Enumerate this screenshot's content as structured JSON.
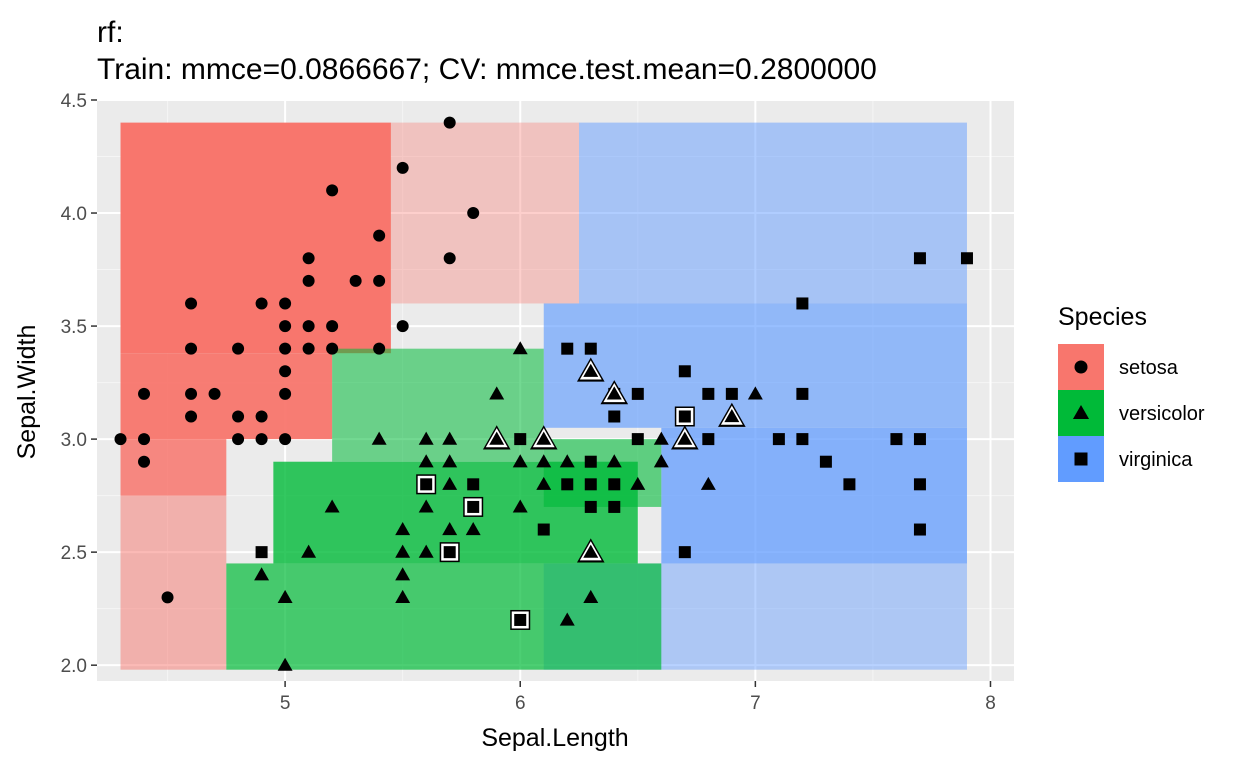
{
  "chart_data": {
    "type": "scatter",
    "title": "rf:",
    "subtitle": "Train: mmce=0.0866667; CV: mmce.test.mean=0.2800000",
    "xlabel": "Sepal.Length",
    "ylabel": "Sepal.Width",
    "xlim": [
      4.2,
      8.1
    ],
    "ylim": [
      1.93,
      4.5
    ],
    "x_ticks": [
      "5",
      "6",
      "7",
      "8"
    ],
    "x_tick_values": [
      5,
      6,
      7,
      8
    ],
    "y_ticks": [
      "2.0",
      "2.5",
      "3.0",
      "3.5",
      "4.0",
      "4.5"
    ],
    "y_tick_values": [
      2.0,
      2.5,
      3.0,
      3.5,
      4.0,
      4.5
    ],
    "grid": true,
    "legend": {
      "title": "Species",
      "position": "right",
      "entries": [
        {
          "label": "setosa",
          "color": "#F8766D",
          "shape": "circle"
        },
        {
          "label": "versicolor",
          "color": "#00BA38",
          "shape": "triangle"
        },
        {
          "label": "virginica",
          "color": "#619CFF",
          "shape": "square"
        }
      ]
    },
    "background_regions": [
      {
        "class": "setosa",
        "x": [
          4.3,
          5.45
        ],
        "y": [
          3.38,
          4.4
        ],
        "alpha": 1.0
      },
      {
        "class": "setosa",
        "x": [
          4.3,
          5.2
        ],
        "y": [
          3.0,
          3.38
        ],
        "alpha": 0.95
      },
      {
        "class": "setosa",
        "x": [
          4.3,
          4.75
        ],
        "y": [
          2.75,
          3.0
        ],
        "alpha": 0.85
      },
      {
        "class": "setosa",
        "x": [
          4.3,
          4.75
        ],
        "y": [
          1.98,
          2.75
        ],
        "alpha": 0.5
      },
      {
        "class": "setosa",
        "x": [
          5.45,
          6.25
        ],
        "y": [
          3.6,
          4.4
        ],
        "alpha": 0.35
      },
      {
        "class": "virginica",
        "x": [
          6.25,
          7.9
        ],
        "y": [
          3.6,
          4.4
        ],
        "alpha": 0.5
      },
      {
        "class": "virginica",
        "x": [
          6.1,
          7.9
        ],
        "y": [
          3.05,
          3.6
        ],
        "alpha": 0.65
      },
      {
        "class": "virginica",
        "x": [
          6.6,
          7.9
        ],
        "y": [
          2.45,
          3.05
        ],
        "alpha": 0.75
      },
      {
        "class": "virginica",
        "x": [
          6.1,
          7.9
        ],
        "y": [
          1.98,
          2.45
        ],
        "alpha": 0.45
      },
      {
        "class": "versicolor",
        "x": [
          5.2,
          6.1
        ],
        "y": [
          2.9,
          3.4
        ],
        "alpha": 0.55
      },
      {
        "class": "versicolor",
        "x": [
          4.95,
          6.5
        ],
        "y": [
          2.45,
          2.9
        ],
        "alpha": 0.8
      },
      {
        "class": "versicolor",
        "x": [
          4.75,
          6.6
        ],
        "y": [
          1.98,
          2.45
        ],
        "alpha": 0.7
      },
      {
        "class": "versicolor",
        "x": [
          6.1,
          6.6
        ],
        "y": [
          2.7,
          3.0
        ],
        "alpha": 0.6
      }
    ],
    "series": [
      {
        "name": "setosa",
        "shape": "circle",
        "points": [
          [
            5.7,
            4.4
          ],
          [
            5.5,
            4.2
          ],
          [
            5.2,
            4.1
          ],
          [
            5.8,
            4.0
          ],
          [
            5.4,
            3.9
          ],
          [
            5.1,
            3.8
          ],
          [
            5.7,
            3.8
          ],
          [
            5.1,
            3.7
          ],
          [
            5.3,
            3.7
          ],
          [
            5.4,
            3.7
          ],
          [
            4.6,
            3.6
          ],
          [
            4.9,
            3.6
          ],
          [
            5.0,
            3.6
          ],
          [
            5.1,
            3.5
          ],
          [
            5.0,
            3.5
          ],
          [
            5.2,
            3.5
          ],
          [
            5.5,
            3.5
          ],
          [
            4.6,
            3.4
          ],
          [
            4.8,
            3.4
          ],
          [
            5.0,
            3.4
          ],
          [
            5.1,
            3.4
          ],
          [
            5.2,
            3.4
          ],
          [
            5.4,
            3.4
          ],
          [
            5.0,
            3.3
          ],
          [
            4.4,
            3.2
          ],
          [
            4.6,
            3.2
          ],
          [
            4.7,
            3.2
          ],
          [
            5.0,
            3.2
          ],
          [
            4.6,
            3.1
          ],
          [
            4.8,
            3.1
          ],
          [
            4.9,
            3.1
          ],
          [
            4.3,
            3.0
          ],
          [
            4.4,
            3.0
          ],
          [
            4.8,
            3.0
          ],
          [
            4.9,
            3.0
          ],
          [
            5.0,
            3.0
          ],
          [
            4.4,
            2.9
          ],
          [
            4.5,
            2.3
          ]
        ]
      },
      {
        "name": "versicolor",
        "shape": "triangle",
        "points": [
          [
            6.0,
            3.4
          ],
          [
            5.9,
            3.2
          ],
          [
            7.0,
            3.2
          ],
          [
            6.3,
            3.3
          ],
          [
            6.4,
            3.2
          ],
          [
            6.9,
            3.1
          ],
          [
            6.7,
            3.1
          ],
          [
            5.9,
            3.0
          ],
          [
            6.1,
            3.0
          ],
          [
            6.7,
            3.0
          ],
          [
            6.6,
            3.0
          ],
          [
            5.4,
            3.0
          ],
          [
            5.6,
            3.0
          ],
          [
            5.7,
            3.0
          ],
          [
            5.6,
            2.9
          ],
          [
            5.7,
            2.9
          ],
          [
            6.0,
            2.9
          ],
          [
            6.1,
            2.9
          ],
          [
            6.2,
            2.9
          ],
          [
            6.4,
            2.9
          ],
          [
            6.6,
            2.9
          ],
          [
            5.7,
            2.8
          ],
          [
            6.1,
            2.8
          ],
          [
            6.5,
            2.8
          ],
          [
            6.8,
            2.8
          ],
          [
            5.6,
            2.7
          ],
          [
            5.8,
            2.7
          ],
          [
            6.0,
            2.7
          ],
          [
            5.2,
            2.7
          ],
          [
            5.5,
            2.6
          ],
          [
            5.7,
            2.6
          ],
          [
            5.8,
            2.6
          ],
          [
            5.1,
            2.5
          ],
          [
            5.5,
            2.5
          ],
          [
            5.6,
            2.5
          ],
          [
            6.3,
            2.5
          ],
          [
            4.9,
            2.4
          ],
          [
            5.5,
            2.4
          ],
          [
            5.0,
            2.3
          ],
          [
            5.5,
            2.3
          ],
          [
            6.3,
            2.3
          ],
          [
            6.2,
            2.2
          ],
          [
            5.0,
            2.0
          ]
        ]
      },
      {
        "name": "virginica",
        "shape": "square",
        "points": [
          [
            7.7,
            3.8
          ],
          [
            7.9,
            3.8
          ],
          [
            7.2,
            3.6
          ],
          [
            6.2,
            3.4
          ],
          [
            6.3,
            3.4
          ],
          [
            6.7,
            3.3
          ],
          [
            6.4,
            3.2
          ],
          [
            6.5,
            3.2
          ],
          [
            6.8,
            3.2
          ],
          [
            6.9,
            3.2
          ],
          [
            7.2,
            3.2
          ],
          [
            6.4,
            3.1
          ],
          [
            6.7,
            3.1
          ],
          [
            6.0,
            3.0
          ],
          [
            6.5,
            3.0
          ],
          [
            6.8,
            3.0
          ],
          [
            7.1,
            3.0
          ],
          [
            7.2,
            3.0
          ],
          [
            7.6,
            3.0
          ],
          [
            7.7,
            3.0
          ],
          [
            6.3,
            2.9
          ],
          [
            7.3,
            2.9
          ],
          [
            5.6,
            2.8
          ],
          [
            5.8,
            2.8
          ],
          [
            6.2,
            2.8
          ],
          [
            6.3,
            2.8
          ],
          [
            6.4,
            2.8
          ],
          [
            7.4,
            2.8
          ],
          [
            7.7,
            2.8
          ],
          [
            5.8,
            2.7
          ],
          [
            6.3,
            2.7
          ],
          [
            6.4,
            2.7
          ],
          [
            7.7,
            2.6
          ],
          [
            6.1,
            2.6
          ],
          [
            4.9,
            2.5
          ],
          [
            5.7,
            2.5
          ],
          [
            6.7,
            2.5
          ],
          [
            6.0,
            2.2
          ]
        ]
      }
    ],
    "highlighted_points": [
      {
        "x": 5.9,
        "y": 3.0,
        "shape": "triangle"
      },
      {
        "x": 6.1,
        "y": 3.0,
        "shape": "triangle"
      },
      {
        "x": 6.3,
        "y": 3.3,
        "shape": "triangle"
      },
      {
        "x": 6.4,
        "y": 3.2,
        "shape": "triangle"
      },
      {
        "x": 6.9,
        "y": 3.1,
        "shape": "triangle"
      },
      {
        "x": 6.7,
        "y": 3.0,
        "shape": "triangle"
      },
      {
        "x": 6.3,
        "y": 2.5,
        "shape": "triangle"
      },
      {
        "x": 6.7,
        "y": 3.1,
        "shape": "square"
      },
      {
        "x": 5.6,
        "y": 2.8,
        "shape": "square"
      },
      {
        "x": 5.8,
        "y": 2.7,
        "shape": "square"
      },
      {
        "x": 5.7,
        "y": 2.5,
        "shape": "square"
      },
      {
        "x": 6.0,
        "y": 2.2,
        "shape": "square"
      }
    ]
  }
}
